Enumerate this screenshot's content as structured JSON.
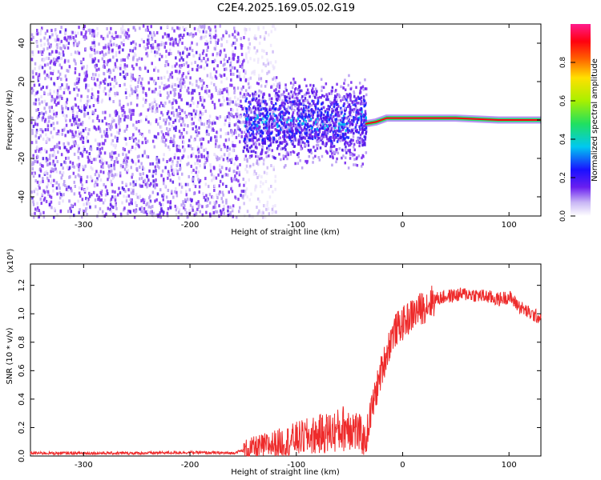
{
  "title": "C2E4.2025.169.05.02.G19",
  "colorbar": {
    "label": "Normalized spectral amplitude",
    "ticks": [
      "0.0",
      "0.2",
      "0.4",
      "0.6",
      "0.8"
    ]
  },
  "chart_data": [
    {
      "type": "heatmap",
      "title": "C2E4.2025.169.05.02.G19",
      "xlabel": "Height of straight line (km)",
      "ylabel": "Frequency (Hz)",
      "xlim": [
        -350,
        130
      ],
      "ylim": [
        -50,
        50
      ],
      "xticks": [
        -300,
        -200,
        -100,
        0,
        100
      ],
      "yticks": [
        -40,
        -20,
        0,
        20,
        40
      ],
      "zlim": [
        0,
        1
      ],
      "regions": [
        {
          "x_range": [
            -350,
            -150
          ],
          "description_level": 0.2
        },
        {
          "x_range": [
            -150,
            -35
          ],
          "description_level": 0.35
        },
        {
          "x_range": [
            -35,
            130
          ],
          "description_level": 0.95
        }
      ],
      "peak_track": [
        {
          "x": -35,
          "y": -2
        },
        {
          "x": -25,
          "y": -1
        },
        {
          "x": -15,
          "y": 1
        },
        {
          "x": 0,
          "y": 1
        },
        {
          "x": 50,
          "y": 1
        },
        {
          "x": 90,
          "y": 0
        },
        {
          "x": 130,
          "y": 0
        }
      ],
      "grid": false
    },
    {
      "type": "line",
      "xlabel": "Height of straight line (km)",
      "ylabel": "SNR (10 * v/v)",
      "yscale_label": "(x10⁴)",
      "xlim": [
        -350,
        130
      ],
      "ylim": [
        0,
        1.35
      ],
      "xticks": [
        -300,
        -200,
        -100,
        0,
        100
      ],
      "yticks": [
        0.0,
        0.2,
        0.4,
        0.6,
        0.8,
        1.0,
        1.2
      ],
      "series": [
        {
          "color": "#ee2b2b",
          "x": [
            -350,
            -300,
            -250,
            -200,
            -160,
            -150,
            -130,
            -110,
            -100,
            -80,
            -60,
            -50,
            -40,
            -35,
            -30,
            -25,
            -20,
            -15,
            -10,
            -5,
            0,
            10,
            20,
            30,
            40,
            50,
            60,
            70,
            80,
            90,
            100,
            110,
            120,
            130
          ],
          "y": [
            0.02,
            0.02,
            0.02,
            0.025,
            0.02,
            0.04,
            0.07,
            0.1,
            0.12,
            0.15,
            0.18,
            0.22,
            0.15,
            0.1,
            0.3,
            0.45,
            0.6,
            0.72,
            0.85,
            0.9,
            0.93,
            1.0,
            1.05,
            1.1,
            1.12,
            1.13,
            1.14,
            1.13,
            1.12,
            1.1,
            1.12,
            1.05,
            1.0,
            0.97
          ]
        }
      ],
      "grid": false
    }
  ]
}
